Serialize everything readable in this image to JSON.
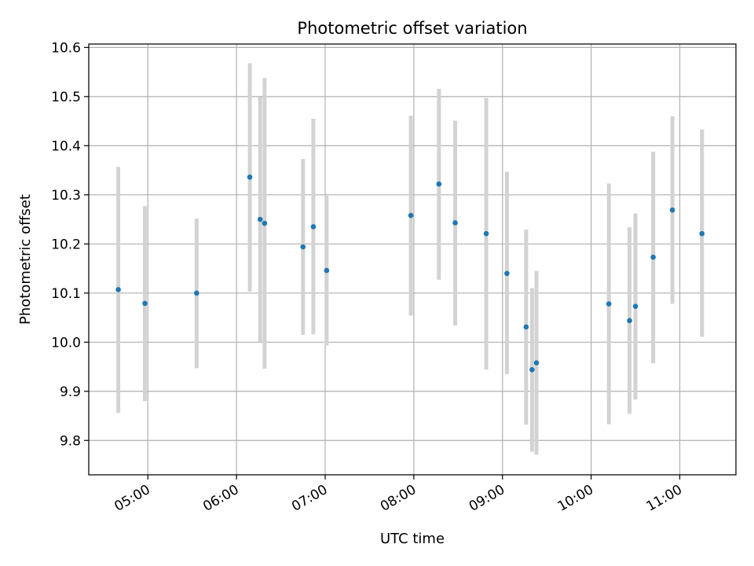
{
  "chart_data": {
    "type": "scatter",
    "title": "Photometric offset variation",
    "xlabel": "UTC time",
    "ylabel": "Photometric offset",
    "x_axis_type": "time",
    "xlim": [
      "04:20",
      "11:38"
    ],
    "ylim": [
      9.73,
      10.607
    ],
    "x_ticks": [
      "05:00",
      "06:00",
      "07:00",
      "08:00",
      "09:00",
      "10:00",
      "11:00"
    ],
    "y_ticks": [
      9.8,
      9.9,
      10.0,
      10.1,
      10.2,
      10.3,
      10.4,
      10.5,
      10.6
    ],
    "y_tick_labels": [
      "9.8",
      "9.9",
      "10.0",
      "10.1",
      "10.2",
      "10.3",
      "10.4",
      "10.5",
      "10.6"
    ],
    "grid": true,
    "colors": {
      "point": "#1f77b4",
      "errorbar": "#d3d3d3",
      "grid": "#b0b0b0"
    },
    "points": [
      {
        "t": "04:40",
        "y": 10.107,
        "lo": 9.856,
        "hi": 10.357
      },
      {
        "t": "04:58",
        "y": 10.079,
        "lo": 9.88,
        "hi": 10.277
      },
      {
        "t": "05:33",
        "y": 10.1,
        "lo": 9.947,
        "hi": 10.252
      },
      {
        "t": "06:09",
        "y": 10.336,
        "lo": 10.103,
        "hi": 10.568
      },
      {
        "t": "06:16",
        "y": 10.25,
        "lo": 10.001,
        "hi": 10.499
      },
      {
        "t": "06:19",
        "y": 10.242,
        "lo": 9.946,
        "hi": 10.538
      },
      {
        "t": "06:45",
        "y": 10.194,
        "lo": 10.015,
        "hi": 10.373
      },
      {
        "t": "06:52",
        "y": 10.235,
        "lo": 10.016,
        "hi": 10.455
      },
      {
        "t": "07:01",
        "y": 10.146,
        "lo": 9.993,
        "hi": 10.298
      },
      {
        "t": "07:58",
        "y": 10.258,
        "lo": 10.054,
        "hi": 10.461
      },
      {
        "t": "08:17",
        "y": 10.322,
        "lo": 10.127,
        "hi": 10.516
      },
      {
        "t": "08:28",
        "y": 10.243,
        "lo": 10.034,
        "hi": 10.451
      },
      {
        "t": "08:49",
        "y": 10.221,
        "lo": 9.944,
        "hi": 10.497
      },
      {
        "t": "09:03",
        "y": 10.14,
        "lo": 9.935,
        "hi": 10.347
      },
      {
        "t": "09:16",
        "y": 10.031,
        "lo": 9.832,
        "hi": 10.229
      },
      {
        "t": "09:20",
        "y": 9.944,
        "lo": 9.777,
        "hi": 10.11
      },
      {
        "t": "09:23",
        "y": 9.958,
        "lo": 9.771,
        "hi": 10.145
      },
      {
        "t": "10:12",
        "y": 10.078,
        "lo": 9.833,
        "hi": 10.323
      },
      {
        "t": "10:26",
        "y": 10.044,
        "lo": 9.854,
        "hi": 10.234
      },
      {
        "t": "10:30",
        "y": 10.073,
        "lo": 9.883,
        "hi": 10.262
      },
      {
        "t": "10:42",
        "y": 10.173,
        "lo": 9.957,
        "hi": 10.388
      },
      {
        "t": "10:55",
        "y": 10.269,
        "lo": 10.078,
        "hi": 10.46
      },
      {
        "t": "11:15",
        "y": 10.221,
        "lo": 10.011,
        "hi": 10.433
      }
    ]
  }
}
